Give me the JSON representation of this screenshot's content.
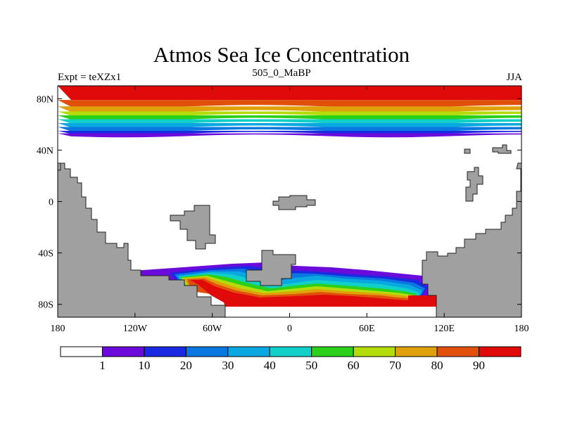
{
  "chart_data": {
    "type": "heatmap",
    "title": "Atmos Sea Ice Concentration",
    "left_label": "Expt = teXZx1",
    "center_label": "505_0_MaBP",
    "right_label": "JJA",
    "x_axis": {
      "range": [
        -180,
        180
      ],
      "ticks": [
        -180,
        -120,
        -60,
        0,
        60,
        120,
        180
      ],
      "tick_labels": [
        "180",
        "120W",
        "60W",
        "0",
        "60E",
        "120E",
        "180"
      ]
    },
    "y_axis": {
      "range": [
        -90,
        90
      ],
      "ticks": [
        80,
        40,
        0,
        -40,
        -80
      ],
      "tick_labels": [
        "80N",
        "40N",
        "0",
        "40S",
        "80S"
      ]
    },
    "colorbar": {
      "boundaries": [
        "1",
        "10",
        "20",
        "30",
        "40",
        "50",
        "60",
        "70",
        "80",
        "90"
      ],
      "colors": [
        "#ffffff",
        "#6a0adb",
        "#1a2ae0",
        "#0a78e0",
        "#0aa8e0",
        "#10d0c8",
        "#2ad01a",
        "#b4dc0a",
        "#e0a00a",
        "#e0500a",
        "#e00a0a"
      ]
    },
    "fields": {
      "arctic_bands_deg": [
        {
          "from": 90,
          "to": 79,
          "value": 95
        },
        {
          "from": 79,
          "to": 74,
          "value": 85
        },
        {
          "from": 74,
          "to": 70,
          "value": 75
        },
        {
          "from": 70,
          "to": 67,
          "value": 65
        },
        {
          "from": 67,
          "to": 64,
          "value": 55
        },
        {
          "from": 64,
          "to": 61,
          "value": 45
        },
        {
          "from": 61,
          "to": 58,
          "value": 35
        },
        {
          "from": 58,
          "to": 55,
          "value": 25
        },
        {
          "from": 55,
          "to": 53,
          "value": 15
        },
        {
          "from": 53,
          "to": 51,
          "value": 5
        }
      ],
      "antarctic_ice_edge_value": 1,
      "land_color": "#a0a0a0",
      "ocean_color": "#ffffff"
    }
  }
}
